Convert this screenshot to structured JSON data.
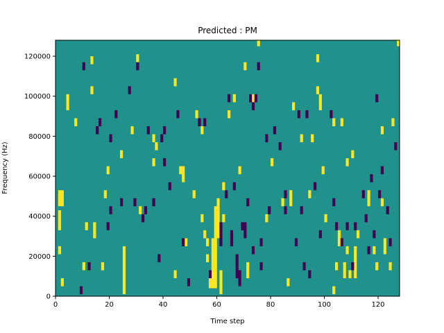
{
  "chart_data": {
    "type": "heatmap",
    "title": "Predicted : PM",
    "xlabel": "Time step",
    "ylabel": "Frequency (Hz)",
    "xlim": [
      0,
      128
    ],
    "ylim": [
      0,
      128000
    ],
    "xticks": [
      0,
      20,
      40,
      60,
      80,
      100,
      120
    ],
    "yticks": [
      0,
      20000,
      40000,
      60000,
      80000,
      100000,
      120000
    ],
    "ytick_labels": [
      "0",
      "20000",
      "40000",
      "60000",
      "80000",
      "100000",
      "120000"
    ],
    "colormap": {
      "low": "#440154",
      "mid": "#21918c",
      "high": "#fde725"
    },
    "background_value": 0,
    "row_height_hz": 4000,
    "cells": {
      "high": [
        [
          1,
          45,
          53
        ],
        [
          2,
          45,
          53
        ],
        [
          1,
          33,
          43
        ],
        [
          1,
          21,
          25
        ],
        [
          4,
          93,
          97
        ],
        [
          4,
          97,
          101
        ],
        [
          2,
          5,
          9
        ],
        [
          7,
          85,
          89
        ],
        [
          13,
          116,
          120
        ],
        [
          13,
          101,
          105
        ],
        [
          11,
          33,
          37
        ],
        [
          10,
          13,
          17
        ],
        [
          14,
          29,
          37
        ],
        [
          17,
          13,
          17
        ],
        [
          18,
          49,
          53
        ],
        [
          19,
          61,
          65
        ],
        [
          24,
          69,
          73
        ],
        [
          25,
          1,
          25
        ],
        [
          28,
          81,
          85
        ],
        [
          30,
          117,
          121
        ],
        [
          31,
          41,
          45
        ],
        [
          36,
          77,
          81
        ],
        [
          36,
          65,
          69
        ],
        [
          37,
          73,
          77
        ],
        [
          44,
          9,
          13
        ],
        [
          44,
          105,
          109
        ],
        [
          46,
          61,
          65
        ],
        [
          47,
          57,
          65
        ],
        [
          48,
          25,
          29
        ],
        [
          49,
          5,
          9
        ],
        [
          51,
          49,
          53
        ],
        [
          52,
          89,
          93
        ],
        [
          54,
          81,
          85
        ],
        [
          54,
          37,
          41
        ],
        [
          55,
          29,
          33
        ],
        [
          56,
          25,
          29
        ],
        [
          56,
          17,
          21
        ],
        [
          57,
          4,
          13
        ],
        [
          58,
          4,
          29
        ],
        [
          59,
          4,
          45
        ],
        [
          60,
          29,
          49
        ],
        [
          61,
          1,
          13
        ],
        [
          62,
          37,
          41
        ],
        [
          62,
          53,
          57
        ],
        [
          64,
          89,
          93
        ],
        [
          66,
          97,
          101
        ],
        [
          68,
          61,
          65
        ],
        [
          70,
          113,
          117
        ],
        [
          71,
          9,
          17
        ],
        [
          73,
          97,
          101
        ],
        [
          75,
          125,
          129
        ],
        [
          78,
          37,
          41
        ],
        [
          80,
          65,
          69
        ],
        [
          84,
          45,
          49
        ],
        [
          86,
          5,
          9
        ],
        [
          87,
          45,
          53
        ],
        [
          88,
          93,
          97
        ],
        [
          91,
          77,
          81
        ],
        [
          94,
          49,
          53
        ],
        [
          95,
          77,
          81
        ],
        [
          97,
          117,
          121
        ],
        [
          97,
          101,
          105
        ],
        [
          98,
          93,
          101
        ],
        [
          99,
          61,
          65
        ],
        [
          100,
          37,
          41
        ],
        [
          103,
          85,
          89
        ],
        [
          103,
          1,
          5
        ],
        [
          104,
          13,
          17
        ],
        [
          105,
          25,
          33
        ],
        [
          106,
          85,
          89
        ],
        [
          107,
          9,
          17
        ],
        [
          108,
          65,
          69
        ],
        [
          108,
          21,
          25
        ],
        [
          109,
          9,
          13
        ],
        [
          110,
          69,
          73
        ],
        [
          111,
          9,
          25
        ],
        [
          112,
          29,
          33
        ],
        [
          116,
          45,
          53
        ],
        [
          118,
          21,
          25
        ],
        [
          119,
          13,
          17
        ],
        [
          121,
          81,
          85
        ],
        [
          121,
          45,
          49
        ],
        [
          122,
          21,
          29
        ],
        [
          124,
          13,
          17
        ],
        [
          125,
          85,
          89
        ],
        [
          127,
          125,
          129
        ]
      ],
      "low": [
        [
          9,
          1,
          5
        ],
        [
          10,
          113,
          117
        ],
        [
          12,
          13,
          17
        ],
        [
          15,
          81,
          85
        ],
        [
          16,
          85,
          89
        ],
        [
          19,
          33,
          37
        ],
        [
          20,
          41,
          45
        ],
        [
          20,
          77,
          81
        ],
        [
          22,
          89,
          93
        ],
        [
          24,
          45,
          49
        ],
        [
          27,
          101,
          105
        ],
        [
          29,
          45,
          49
        ],
        [
          30,
          113,
          117
        ],
        [
          32,
          37,
          41
        ],
        [
          33,
          41,
          45
        ],
        [
          34,
          81,
          85
        ],
        [
          36,
          45,
          49
        ],
        [
          38,
          17,
          21
        ],
        [
          39,
          77,
          81
        ],
        [
          40,
          65,
          69
        ],
        [
          40,
          81,
          85
        ],
        [
          42,
          53,
          57
        ],
        [
          45,
          89,
          93
        ],
        [
          47,
          25,
          29
        ],
        [
          49,
          5,
          9
        ],
        [
          53,
          85,
          89
        ],
        [
          55,
          85,
          89
        ],
        [
          57,
          9,
          13
        ],
        [
          61,
          25,
          37
        ],
        [
          63,
          49,
          53
        ],
        [
          64,
          97,
          101
        ],
        [
          65,
          25,
          33
        ],
        [
          66,
          53,
          57
        ],
        [
          67,
          9,
          21
        ],
        [
          68,
          5,
          13
        ],
        [
          69,
          33,
          37
        ],
        [
          70,
          29,
          37
        ],
        [
          71,
          45,
          49
        ],
        [
          72,
          97,
          101
        ],
        [
          73,
          21,
          25
        ],
        [
          73,
          93,
          97
        ],
        [
          74,
          97,
          101
        ],
        [
          75,
          113,
          117
        ],
        [
          76,
          13,
          17
        ],
        [
          76,
          25,
          29
        ],
        [
          78,
          77,
          81
        ],
        [
          79,
          41,
          45
        ],
        [
          81,
          81,
          85
        ],
        [
          83,
          73,
          77
        ],
        [
          85,
          49,
          53
        ],
        [
          85,
          41,
          45
        ],
        [
          89,
          25,
          29
        ],
        [
          90,
          89,
          93
        ],
        [
          91,
          41,
          45
        ],
        [
          92,
          13,
          17
        ],
        [
          93,
          89,
          93
        ],
        [
          94,
          9,
          13
        ],
        [
          96,
          53,
          57
        ],
        [
          98,
          29,
          33
        ],
        [
          102,
          89,
          93
        ],
        [
          103,
          45,
          49
        ],
        [
          104,
          33,
          37
        ],
        [
          106,
          25,
          29
        ],
        [
          108,
          33,
          37
        ],
        [
          110,
          13,
          17
        ],
        [
          111,
          33,
          37
        ],
        [
          114,
          49,
          53
        ],
        [
          115,
          37,
          41
        ],
        [
          116,
          21,
          25
        ],
        [
          117,
          57,
          61
        ],
        [
          118,
          29,
          33
        ],
        [
          119,
          97,
          101
        ],
        [
          120,
          49,
          53
        ],
        [
          121,
          61,
          65
        ],
        [
          123,
          41,
          45
        ],
        [
          124,
          25,
          29
        ],
        [
          126,
          73,
          77
        ]
      ]
    }
  }
}
